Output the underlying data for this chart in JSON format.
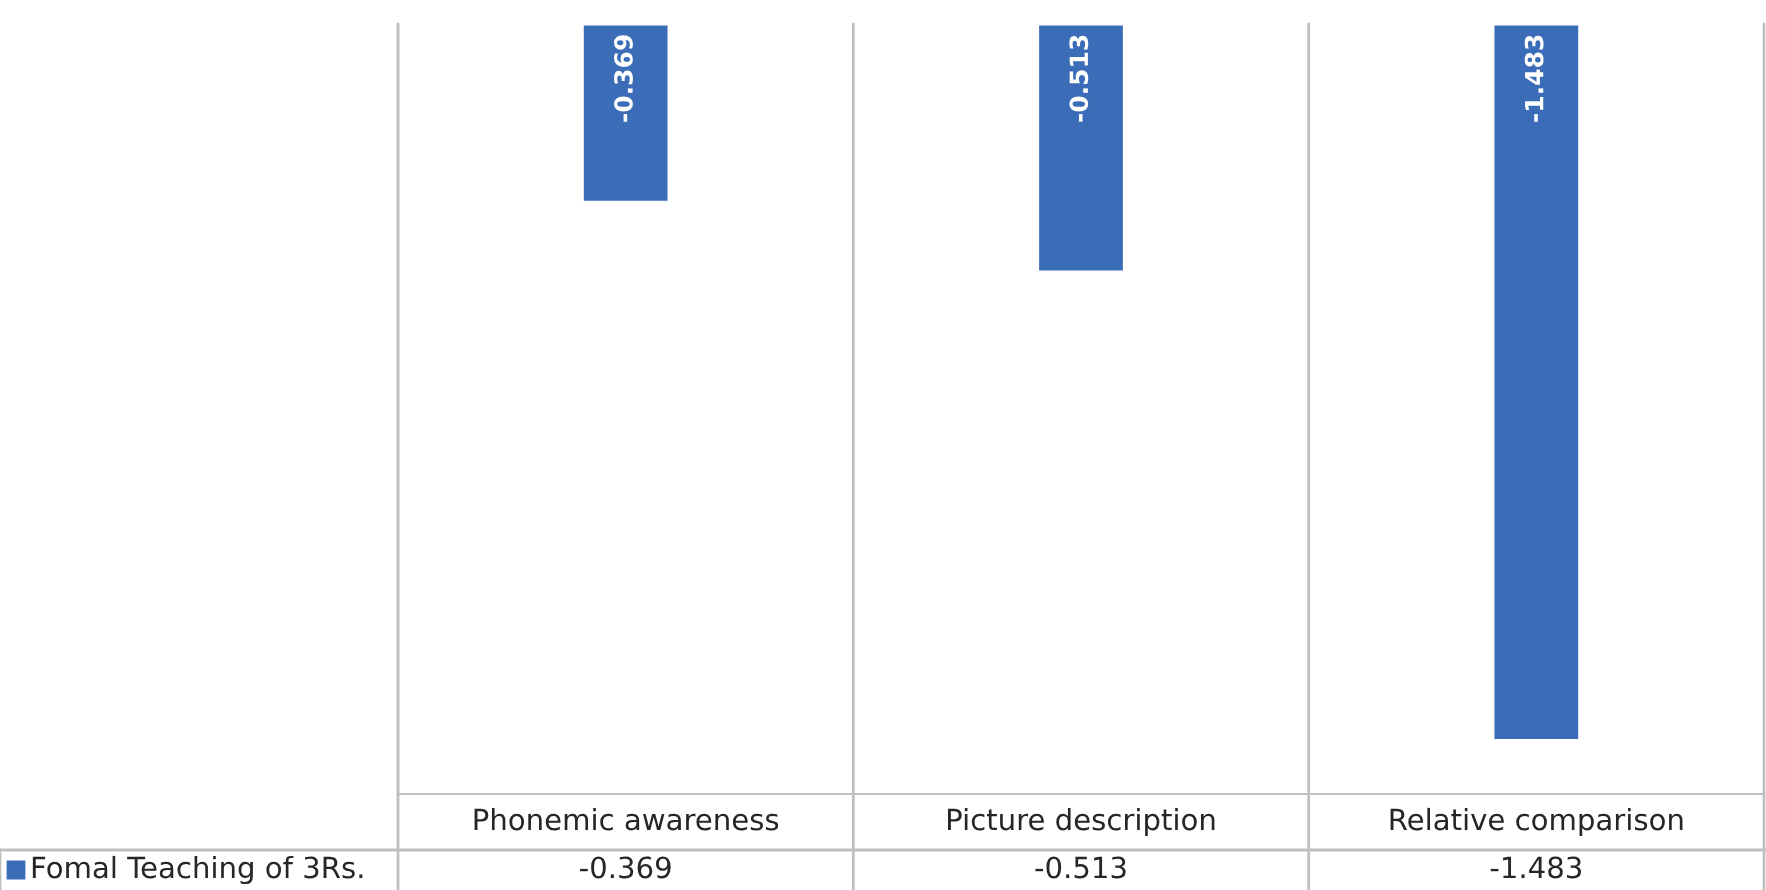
{
  "chart_data": {
    "type": "bar",
    "categories": [
      "Phonemic awareness",
      "Picture description",
      "Relative comparison"
    ],
    "series": [
      {
        "name": "Fomal Teaching of 3Rs.",
        "color": "#3a6cb7",
        "values": [
          -0.369,
          -0.513,
          -1.483
        ],
        "value_labels": [
          "-0.369",
          "-0.513",
          "-1.483"
        ]
      }
    ],
    "annotations": [
      "-0.369",
      "-0.513",
      "-1.483"
    ],
    "legend": "bottom"
  }
}
